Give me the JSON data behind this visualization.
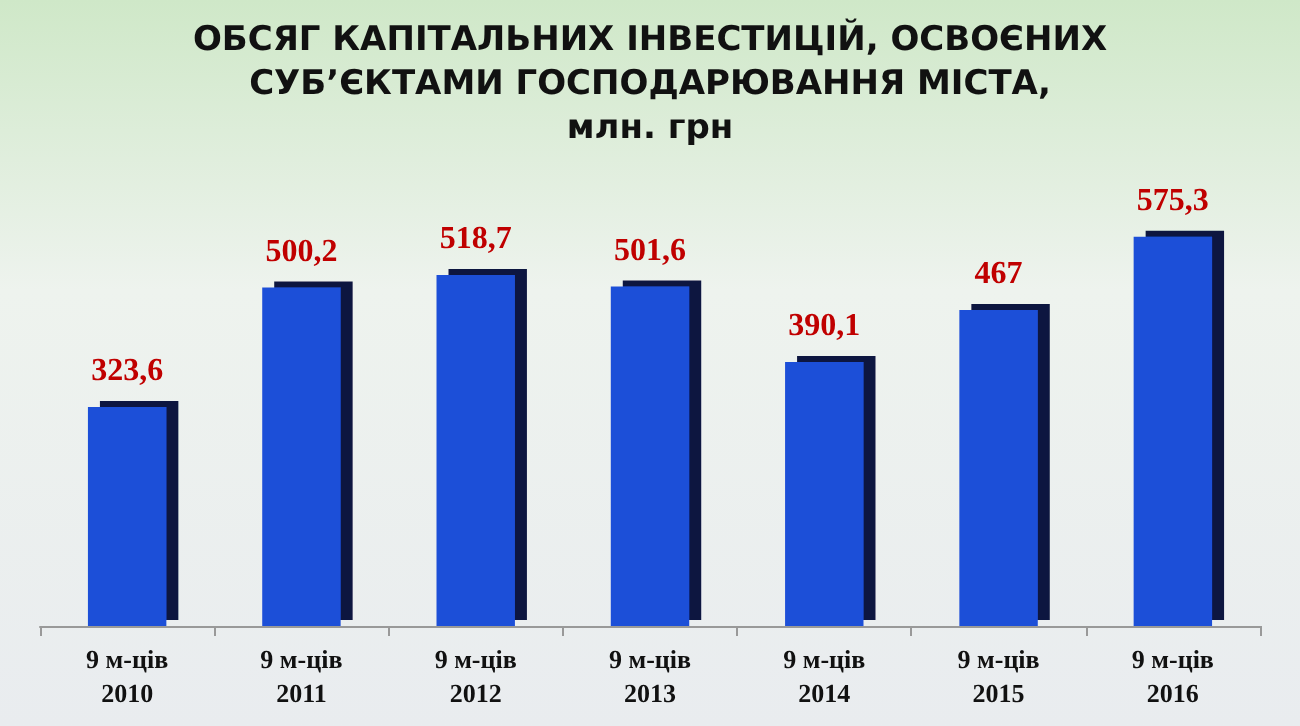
{
  "chart_data": {
    "type": "bar",
    "title": "ОБСЯГ КАПІТАЛЬНИХ ІНВЕСТИЦІЙ, ОСВОЄНИХ\nСУБ’ЄКТАМИ ГОСПОДАРЮВАННЯ МІСТА,\nмлн. грн",
    "categories": [
      "9 м-ців\n2010",
      "9 м-ців\n2011",
      "9 м-ців\n2012",
      "9 м-ців\n2013",
      "9 м-ців\n2014",
      "9 м-ців\n2015",
      "9 м-ців\n2016"
    ],
    "values": [
      323.6,
      500.2,
      518.7,
      501.6,
      390.1,
      467,
      575.3
    ],
    "value_labels": [
      "323,6",
      "500,2",
      "518,7",
      "501,6",
      "390,1",
      "467",
      "575,3"
    ],
    "color": "#1f4fd8"
  }
}
